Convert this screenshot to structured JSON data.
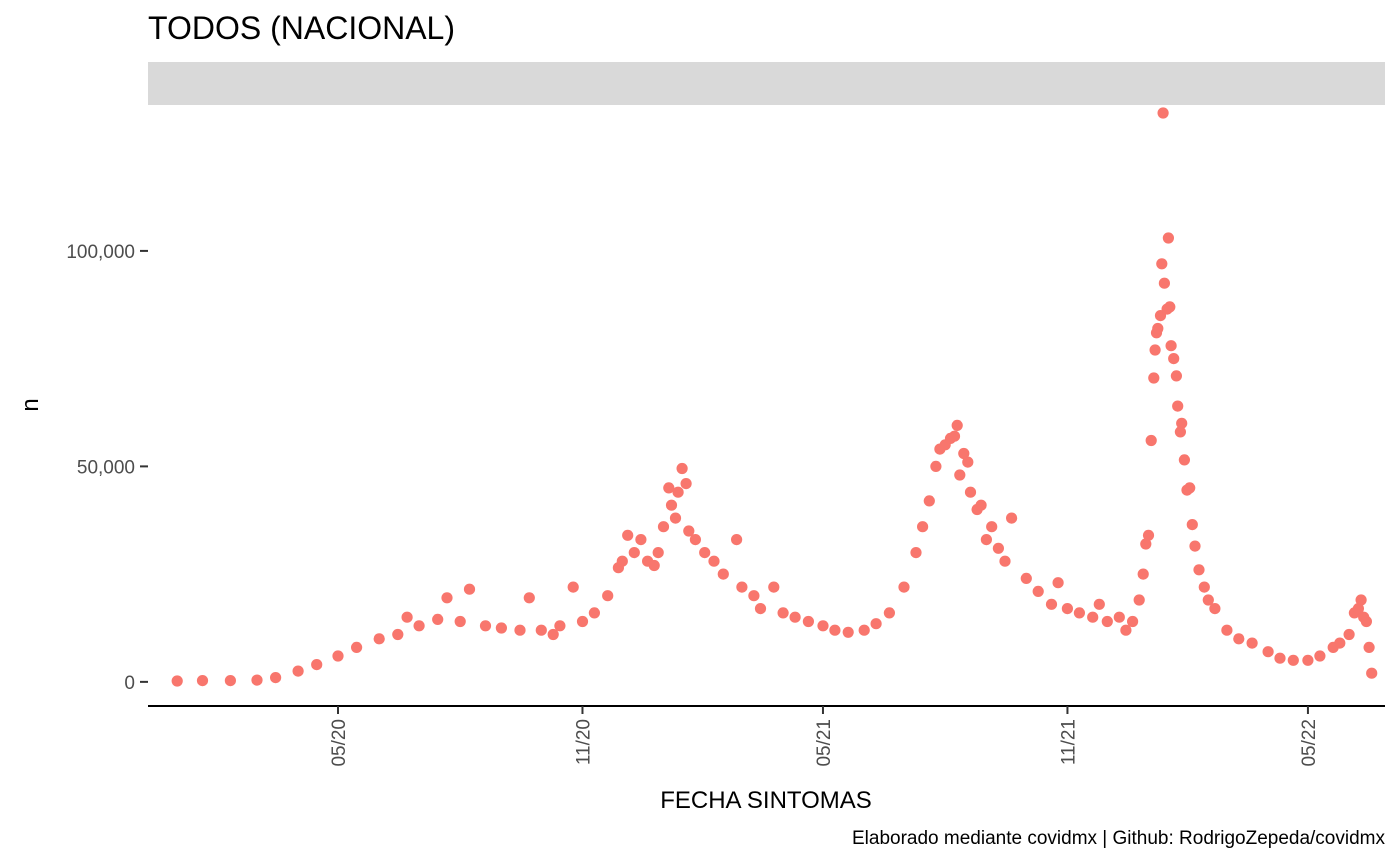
{
  "chart_data": {
    "type": "scatter",
    "title": "TODOS (NACIONAL)",
    "xlabel": "FECHA SINTOMAS",
    "ylabel": "n",
    "caption": "Elaborado mediante covidmx | Github: RodrigoZepeda/covidmx",
    "point_color": "#F8766D",
    "strip_color": "#D9D9D9",
    "grid": false,
    "legend": "none",
    "xlim": [
      "2019-12-10",
      "2022-06-28"
    ],
    "ylim": [
      -5600,
      132000
    ],
    "x_ticks": [
      {
        "label": "05/20",
        "date": "2020-05-01"
      },
      {
        "label": "11/20",
        "date": "2020-11-01"
      },
      {
        "label": "05/21",
        "date": "2021-05-01"
      },
      {
        "label": "11/21",
        "date": "2021-11-01"
      },
      {
        "label": "05/22",
        "date": "2022-05-01"
      }
    ],
    "y_ticks": [
      {
        "label": "0",
        "value": 0
      },
      {
        "label": "50,000",
        "value": 50000
      },
      {
        "label": "100,000",
        "value": 100000
      }
    ],
    "series": [
      {
        "points": [
          [
            "2020-01-01",
            200
          ],
          [
            "2020-01-20",
            300
          ],
          [
            "2020-02-10",
            300
          ],
          [
            "2020-03-01",
            400
          ],
          [
            "2020-03-15",
            1000
          ],
          [
            "2020-04-01",
            2500
          ],
          [
            "2020-04-15",
            4000
          ],
          [
            "2020-05-01",
            6000
          ],
          [
            "2020-05-15",
            8000
          ],
          [
            "2020-06-01",
            10000
          ],
          [
            "2020-06-15",
            11000
          ],
          [
            "2020-06-22",
            15000
          ],
          [
            "2020-07-01",
            13000
          ],
          [
            "2020-07-15",
            14500
          ],
          [
            "2020-07-22",
            19500
          ],
          [
            "2020-08-01",
            14000
          ],
          [
            "2020-08-08",
            21500
          ],
          [
            "2020-08-20",
            13000
          ],
          [
            "2020-09-01",
            12500
          ],
          [
            "2020-09-15",
            12000
          ],
          [
            "2020-09-22",
            19500
          ],
          [
            "2020-10-01",
            12000
          ],
          [
            "2020-10-10",
            11000
          ],
          [
            "2020-10-15",
            13000
          ],
          [
            "2020-10-25",
            22000
          ],
          [
            "2020-11-01",
            14000
          ],
          [
            "2020-11-10",
            16000
          ],
          [
            "2020-11-20",
            20000
          ],
          [
            "2020-11-28",
            26500
          ],
          [
            "2020-12-01",
            28000
          ],
          [
            "2020-12-05",
            34000
          ],
          [
            "2020-12-10",
            30000
          ],
          [
            "2020-12-15",
            33000
          ],
          [
            "2020-12-20",
            28000
          ],
          [
            "2020-12-25",
            27000
          ],
          [
            "2020-12-28",
            30000
          ],
          [
            "2021-01-01",
            36000
          ],
          [
            "2021-01-05",
            45000
          ],
          [
            "2021-01-07",
            41000
          ],
          [
            "2021-01-10",
            38000
          ],
          [
            "2021-01-12",
            44000
          ],
          [
            "2021-01-15",
            49500
          ],
          [
            "2021-01-18",
            46000
          ],
          [
            "2021-01-20",
            35000
          ],
          [
            "2021-01-25",
            33000
          ],
          [
            "2021-02-01",
            30000
          ],
          [
            "2021-02-08",
            28000
          ],
          [
            "2021-02-15",
            25000
          ],
          [
            "2021-02-25",
            33000
          ],
          [
            "2021-03-01",
            22000
          ],
          [
            "2021-03-10",
            20000
          ],
          [
            "2021-03-15",
            17000
          ],
          [
            "2021-03-25",
            22000
          ],
          [
            "2021-04-01",
            16000
          ],
          [
            "2021-04-10",
            15000
          ],
          [
            "2021-04-20",
            14000
          ],
          [
            "2021-05-01",
            13000
          ],
          [
            "2021-05-10",
            12000
          ],
          [
            "2021-05-20",
            11500
          ],
          [
            "2021-06-01",
            12000
          ],
          [
            "2021-06-10",
            13500
          ],
          [
            "2021-06-20",
            16000
          ],
          [
            "2021-07-01",
            22000
          ],
          [
            "2021-07-10",
            30000
          ],
          [
            "2021-07-15",
            36000
          ],
          [
            "2021-07-20",
            42000
          ],
          [
            "2021-07-25",
            50000
          ],
          [
            "2021-07-28",
            54000
          ],
          [
            "2021-08-01",
            55000
          ],
          [
            "2021-08-05",
            56500
          ],
          [
            "2021-08-08",
            57000
          ],
          [
            "2021-08-10",
            59500
          ],
          [
            "2021-08-12",
            48000
          ],
          [
            "2021-08-15",
            53000
          ],
          [
            "2021-08-18",
            51000
          ],
          [
            "2021-08-20",
            44000
          ],
          [
            "2021-08-25",
            40000
          ],
          [
            "2021-08-28",
            41000
          ],
          [
            "2021-09-01",
            33000
          ],
          [
            "2021-09-05",
            36000
          ],
          [
            "2021-09-10",
            31000
          ],
          [
            "2021-09-15",
            28000
          ],
          [
            "2021-09-20",
            38000
          ],
          [
            "2021-10-01",
            24000
          ],
          [
            "2021-10-10",
            21000
          ],
          [
            "2021-10-20",
            18000
          ],
          [
            "2021-10-25",
            23000
          ],
          [
            "2021-11-01",
            17000
          ],
          [
            "2021-11-10",
            16000
          ],
          [
            "2021-11-20",
            15000
          ],
          [
            "2021-11-25",
            18000
          ],
          [
            "2021-12-01",
            14000
          ],
          [
            "2021-12-10",
            15000
          ],
          [
            "2021-12-15",
            12000
          ],
          [
            "2021-12-20",
            14000
          ],
          [
            "2021-12-25",
            19000
          ],
          [
            "2021-12-28",
            25000
          ],
          [
            "2021-12-30",
            32000
          ],
          [
            "2022-01-01",
            34000
          ],
          [
            "2022-01-03",
            56000
          ],
          [
            "2022-01-05",
            70500
          ],
          [
            "2022-01-06",
            77000
          ],
          [
            "2022-01-07",
            81000
          ],
          [
            "2022-01-08",
            82000
          ],
          [
            "2022-01-10",
            85000
          ],
          [
            "2022-01-11",
            97000
          ],
          [
            "2022-01-12",
            132000
          ],
          [
            "2022-01-13",
            92500
          ],
          [
            "2022-01-15",
            86500
          ],
          [
            "2022-01-16",
            103000
          ],
          [
            "2022-01-17",
            87000
          ],
          [
            "2022-01-18",
            78000
          ],
          [
            "2022-01-20",
            75000
          ],
          [
            "2022-01-22",
            71000
          ],
          [
            "2022-01-23",
            64000
          ],
          [
            "2022-01-25",
            58000
          ],
          [
            "2022-01-26",
            60000
          ],
          [
            "2022-01-28",
            51500
          ],
          [
            "2022-01-30",
            44500
          ],
          [
            "2022-02-01",
            45000
          ],
          [
            "2022-02-03",
            36500
          ],
          [
            "2022-02-05",
            31500
          ],
          [
            "2022-02-08",
            26000
          ],
          [
            "2022-02-12",
            22000
          ],
          [
            "2022-02-15",
            19000
          ],
          [
            "2022-02-20",
            17000
          ],
          [
            "2022-03-01",
            12000
          ],
          [
            "2022-03-10",
            10000
          ],
          [
            "2022-03-20",
            9000
          ],
          [
            "2022-04-01",
            7000
          ],
          [
            "2022-04-10",
            5500
          ],
          [
            "2022-04-20",
            5000
          ],
          [
            "2022-05-01",
            5000
          ],
          [
            "2022-05-10",
            6000
          ],
          [
            "2022-05-20",
            8000
          ],
          [
            "2022-05-25",
            9000
          ],
          [
            "2022-06-01",
            11000
          ],
          [
            "2022-06-05",
            16000
          ],
          [
            "2022-06-08",
            17000
          ],
          [
            "2022-06-10",
            19000
          ],
          [
            "2022-06-12",
            15000
          ],
          [
            "2022-06-14",
            14000
          ],
          [
            "2022-06-16",
            8000
          ],
          [
            "2022-06-18",
            2000
          ]
        ]
      }
    ]
  }
}
